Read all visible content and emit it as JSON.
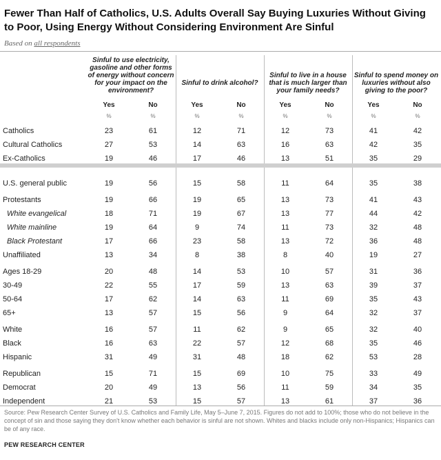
{
  "title": "Fewer Than Half of Catholics, U.S. Adults Overall Say Buying Luxuries Without Giving to Poor, Using Energy Without Considering Environment Are Sinful",
  "subtitle_prefix": "Based on ",
  "subtitle_link": "all respondents",
  "columns": [
    {
      "header": "Sinful to use electricity, gasoline and other forms of energy without concern for your impact on the environment?",
      "yes": "Yes",
      "no": "No",
      "pct": "%"
    },
    {
      "header": "Sinful to drink alcohol?",
      "yes": "Yes",
      "no": "No",
      "pct": "%"
    },
    {
      "header": "Sinful to live in a house that is much larger than your family needs?",
      "yes": "Yes",
      "no": "No",
      "pct": "%"
    },
    {
      "header": "Sinful to spend money on luxuries without also giving to the poor?",
      "yes": "Yes",
      "no": "No",
      "pct": "%"
    }
  ],
  "chart_data": {
    "type": "table",
    "title": "Fewer Than Half of Catholics, U.S. Adults Overall Say Buying Luxuries Without Giving to Poor, Using Energy Without Considering Environment Are Sinful",
    "columns": [
      "Energy: Yes",
      "Energy: No",
      "Alcohol: Yes",
      "Alcohol: No",
      "Large house: Yes",
      "Large house: No",
      "Luxuries: Yes",
      "Luxuries: No"
    ],
    "rows": [
      {
        "label": "Catholics",
        "values": [
          23,
          61,
          12,
          71,
          12,
          73,
          41,
          42
        ]
      },
      {
        "label": "Cultural Catholics",
        "values": [
          27,
          53,
          14,
          63,
          16,
          63,
          42,
          35
        ]
      },
      {
        "label": "Ex-Catholics",
        "values": [
          19,
          46,
          17,
          46,
          13,
          51,
          35,
          29
        ]
      },
      {
        "label": "U.S. general public",
        "values": [
          19,
          56,
          15,
          58,
          11,
          64,
          35,
          38
        ]
      },
      {
        "label": "Protestants",
        "values": [
          19,
          66,
          19,
          65,
          13,
          73,
          41,
          43
        ]
      },
      {
        "label": "White evangelical",
        "values": [
          18,
          71,
          19,
          67,
          13,
          77,
          44,
          42
        ]
      },
      {
        "label": "White mainline",
        "values": [
          19,
          64,
          9,
          74,
          11,
          73,
          32,
          48
        ]
      },
      {
        "label": "Black Protestant",
        "values": [
          17,
          66,
          23,
          58,
          13,
          72,
          36,
          48
        ]
      },
      {
        "label": "Unaffiliated",
        "values": [
          13,
          34,
          8,
          38,
          8,
          40,
          19,
          27
        ]
      },
      {
        "label": "Ages 18-29",
        "values": [
          20,
          48,
          14,
          53,
          10,
          57,
          31,
          36
        ]
      },
      {
        "label": "30-49",
        "values": [
          22,
          55,
          17,
          59,
          13,
          63,
          39,
          37
        ]
      },
      {
        "label": "50-64",
        "values": [
          17,
          62,
          14,
          63,
          11,
          69,
          35,
          43
        ]
      },
      {
        "label": "65+",
        "values": [
          13,
          57,
          15,
          56,
          9,
          64,
          32,
          37
        ]
      },
      {
        "label": "White",
        "values": [
          16,
          57,
          11,
          62,
          9,
          65,
          32,
          40
        ]
      },
      {
        "label": "Black",
        "values": [
          16,
          63,
          22,
          57,
          12,
          68,
          35,
          46
        ]
      },
      {
        "label": "Hispanic",
        "values": [
          31,
          49,
          31,
          48,
          18,
          62,
          53,
          28
        ]
      },
      {
        "label": "Republican",
        "values": [
          15,
          71,
          15,
          69,
          10,
          75,
          33,
          49
        ]
      },
      {
        "label": "Democrat",
        "values": [
          20,
          49,
          13,
          56,
          11,
          59,
          34,
          35
        ]
      },
      {
        "label": "Independent",
        "values": [
          21,
          53,
          15,
          57,
          13,
          61,
          37,
          36
        ]
      }
    ]
  },
  "note": "Source: Pew Research Center Survey of U.S. Catholics and Family Life, May 5–June 7, 2015. Figures do not add to 100%; those who do not believe in the concept of sin and those saying they don't know whether each behavior is sinful are not shown. Whites and blacks include only non-Hispanics; Hispanics can be of any race.",
  "source_org": "PEW RESEARCH CENTER"
}
